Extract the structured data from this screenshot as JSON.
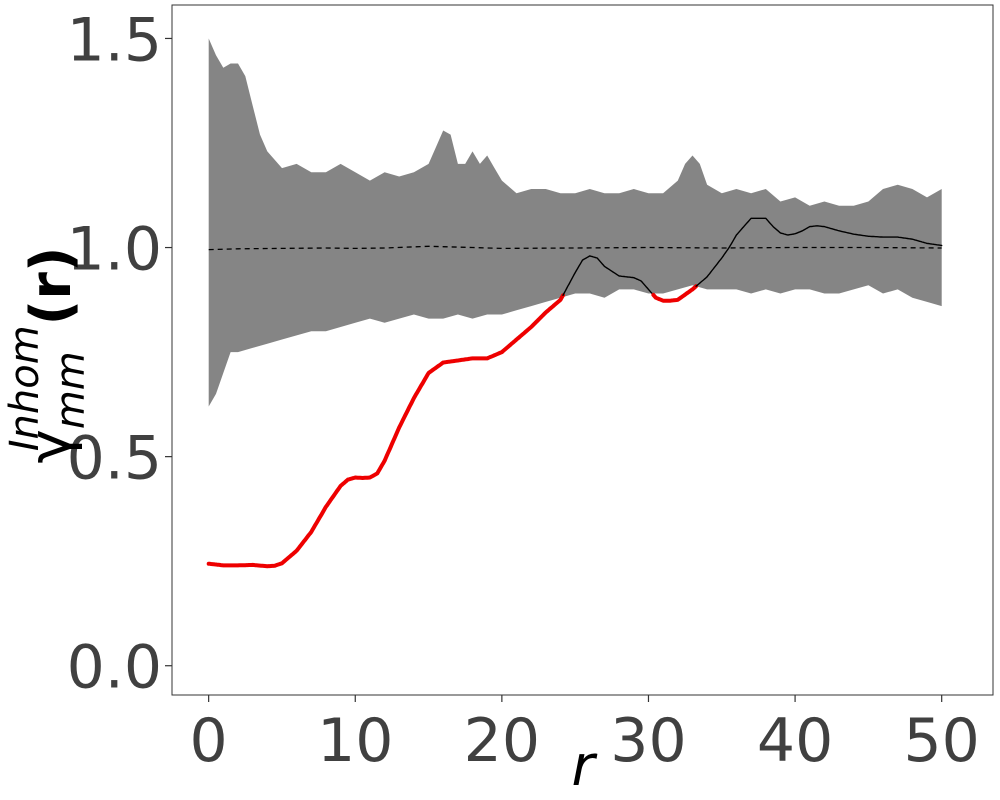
{
  "chart_data": {
    "type": "line",
    "title": "",
    "xlabel": "r",
    "ylabel": {
      "base": "γ",
      "superscript": "Inhom",
      "subscript": "mm",
      "suffix": "(r)"
    },
    "xlim": [
      -2.5,
      53.5
    ],
    "ylim": [
      -0.07,
      1.58
    ],
    "x_ticks": [
      0,
      10,
      20,
      30,
      40,
      50
    ],
    "x_tick_labels": [
      "0",
      "10",
      "20",
      "30",
      "40",
      "50"
    ],
    "y_ticks": [
      0.0,
      0.5,
      1.0,
      1.5
    ],
    "y_tick_labels": [
      "0.0",
      "0.5",
      "1.0",
      "1.5"
    ],
    "grid": false,
    "legend": "none",
    "colors": {
      "envelope": "#858585",
      "observed_inside": "#000000",
      "observed_outside": "#ee0000",
      "theoretical": "#000000",
      "frame": "#333333"
    },
    "series": [
      {
        "role": "envelope-upper",
        "x": [
          0,
          0.5,
          1,
          1.5,
          2,
          2.5,
          3,
          3.5,
          4,
          5,
          6,
          7,
          8,
          9,
          10,
          11,
          12,
          13,
          14,
          15,
          15.5,
          16,
          16.5,
          17,
          17.5,
          18,
          18.5,
          19,
          19.5,
          20,
          21,
          22,
          23,
          24,
          25,
          26,
          27,
          28,
          29,
          30,
          31,
          32,
          32.5,
          33,
          33.5,
          34,
          35,
          36,
          37,
          38,
          39,
          40,
          41,
          42,
          43,
          44,
          45,
          46,
          47,
          48,
          49,
          50
        ],
        "y": [
          1.5,
          1.46,
          1.43,
          1.44,
          1.44,
          1.41,
          1.34,
          1.27,
          1.23,
          1.19,
          1.2,
          1.18,
          1.18,
          1.2,
          1.18,
          1.16,
          1.18,
          1.17,
          1.18,
          1.2,
          1.24,
          1.28,
          1.27,
          1.2,
          1.2,
          1.23,
          1.2,
          1.22,
          1.19,
          1.16,
          1.13,
          1.14,
          1.14,
          1.13,
          1.13,
          1.14,
          1.13,
          1.13,
          1.14,
          1.13,
          1.13,
          1.16,
          1.2,
          1.22,
          1.2,
          1.15,
          1.13,
          1.14,
          1.13,
          1.14,
          1.11,
          1.12,
          1.1,
          1.11,
          1.1,
          1.1,
          1.11,
          1.14,
          1.15,
          1.14,
          1.12,
          1.14
        ]
      },
      {
        "role": "envelope-lower",
        "x": [
          0,
          0.5,
          1,
          1.5,
          2,
          3,
          4,
          5,
          6,
          7,
          8,
          9,
          10,
          11,
          12,
          13,
          14,
          15,
          16,
          17,
          18,
          19,
          20,
          21,
          22,
          23,
          24,
          25,
          26,
          27,
          28,
          29,
          30,
          31,
          32,
          33,
          34,
          35,
          36,
          37,
          38,
          39,
          40,
          41,
          42,
          43,
          44,
          45,
          46,
          47,
          48,
          49,
          50
        ],
        "y": [
          0.62,
          0.65,
          0.7,
          0.75,
          0.75,
          0.76,
          0.77,
          0.78,
          0.79,
          0.8,
          0.8,
          0.81,
          0.82,
          0.83,
          0.82,
          0.83,
          0.84,
          0.83,
          0.83,
          0.84,
          0.83,
          0.84,
          0.84,
          0.85,
          0.86,
          0.87,
          0.88,
          0.89,
          0.89,
          0.88,
          0.9,
          0.9,
          0.89,
          0.89,
          0.9,
          0.91,
          0.9,
          0.9,
          0.9,
          0.89,
          0.9,
          0.89,
          0.9,
          0.9,
          0.89,
          0.89,
          0.9,
          0.91,
          0.89,
          0.9,
          0.88,
          0.87,
          0.86
        ]
      },
      {
        "role": "theoretical",
        "style": "dashed",
        "x": [
          0,
          2,
          5,
          8,
          10,
          12,
          15,
          18,
          20,
          25,
          30,
          35,
          40,
          45,
          50
        ],
        "y": [
          0.995,
          0.997,
          0.998,
          0.999,
          0.998,
          0.999,
          1.003,
          1.0,
          0.998,
          0.999,
          1.0,
          0.999,
          1.0,
          1.0,
          0.999
        ]
      },
      {
        "role": "observed",
        "style": "solid",
        "note_color": "red where outside the envelope",
        "x": [
          0,
          1,
          2,
          3,
          4,
          4.5,
          5,
          6,
          7,
          8,
          9,
          9.5,
          10,
          10.5,
          11,
          11.5,
          12,
          13,
          14,
          15,
          16,
          17,
          18,
          19,
          20,
          21,
          22,
          23,
          23.5,
          24,
          25,
          25.5,
          26,
          26.5,
          27,
          28,
          29,
          29.5,
          30,
          30.5,
          31,
          31.5,
          32,
          33,
          34,
          35,
          35.5,
          36,
          37,
          38,
          38.5,
          39,
          39.5,
          40,
          40.5,
          41,
          41.5,
          42,
          43,
          44,
          45,
          46,
          47,
          48,
          49,
          50
        ],
        "y": [
          0.244,
          0.24,
          0.24,
          0.241,
          0.238,
          0.239,
          0.245,
          0.275,
          0.32,
          0.38,
          0.43,
          0.445,
          0.45,
          0.449,
          0.45,
          0.46,
          0.49,
          0.57,
          0.64,
          0.7,
          0.725,
          0.73,
          0.735,
          0.735,
          0.75,
          0.78,
          0.81,
          0.845,
          0.86,
          0.875,
          0.94,
          0.97,
          0.98,
          0.975,
          0.955,
          0.932,
          0.928,
          0.92,
          0.9,
          0.88,
          0.873,
          0.873,
          0.875,
          0.9,
          0.93,
          0.975,
          1.0,
          1.03,
          1.07,
          1.07,
          1.05,
          1.035,
          1.03,
          1.033,
          1.04,
          1.05,
          1.052,
          1.05,
          1.04,
          1.032,
          1.027,
          1.025,
          1.025,
          1.02,
          1.01,
          1.005
        ]
      }
    ]
  }
}
